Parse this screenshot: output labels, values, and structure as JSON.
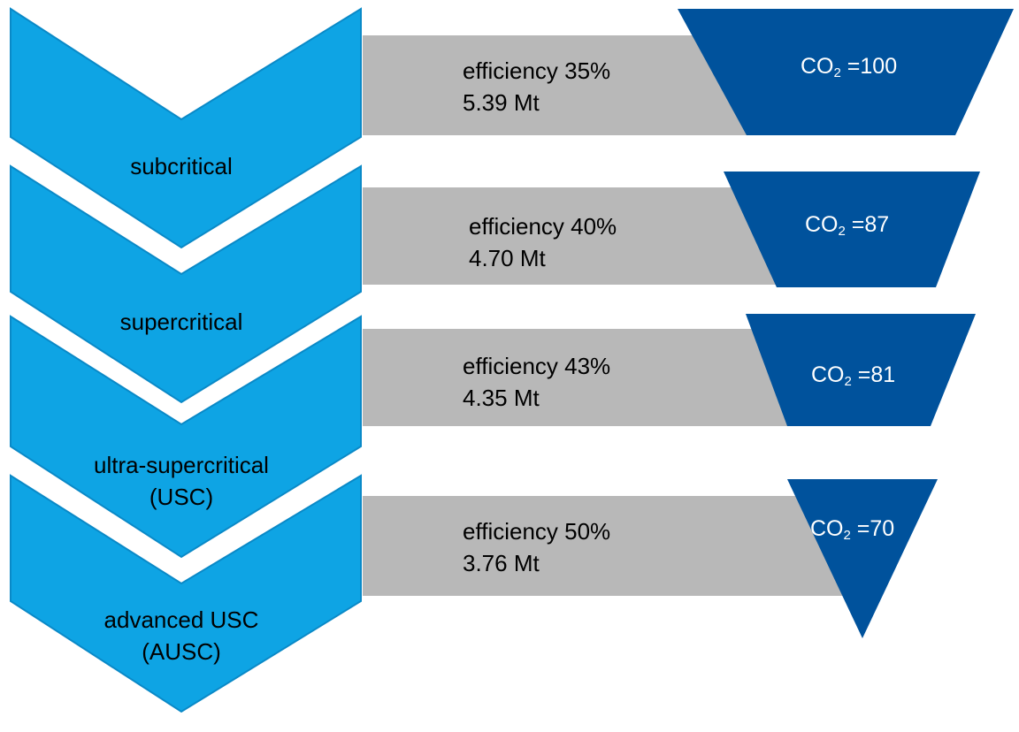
{
  "colors": {
    "chevron_fill": "#0ea4e4",
    "chevron_stroke": "#0a89c7",
    "bar_fill": "#b8b8b8",
    "funnel_fill": "#00529c",
    "text": "#000000",
    "funnel_text": "#ffffff"
  },
  "stages": [
    {
      "name_lines": [
        "subcritical"
      ],
      "efficiency": "efficiency 35%",
      "emissions": "5.39 Mt",
      "co2_prefix": "CO",
      "co2_sub": "2",
      "co2_value": " =100"
    },
    {
      "name_lines": [
        "supercritical"
      ],
      "efficiency": "efficiency 40%",
      "emissions": "4.70 Mt",
      "co2_prefix": "CO",
      "co2_sub": "2",
      "co2_value": " =87"
    },
    {
      "name_lines": [
        "ultra-supercritical",
        "(USC)"
      ],
      "efficiency": "efficiency 43%",
      "emissions": "4.35 Mt",
      "co2_prefix": "CO",
      "co2_sub": "2",
      "co2_value": " =81"
    },
    {
      "name_lines": [
        "advanced USC",
        "(AUSC)"
      ],
      "efficiency": "efficiency 50%",
      "emissions": "3.76 Mt",
      "co2_prefix": "CO",
      "co2_sub": "2",
      "co2_value": " =70"
    }
  ]
}
